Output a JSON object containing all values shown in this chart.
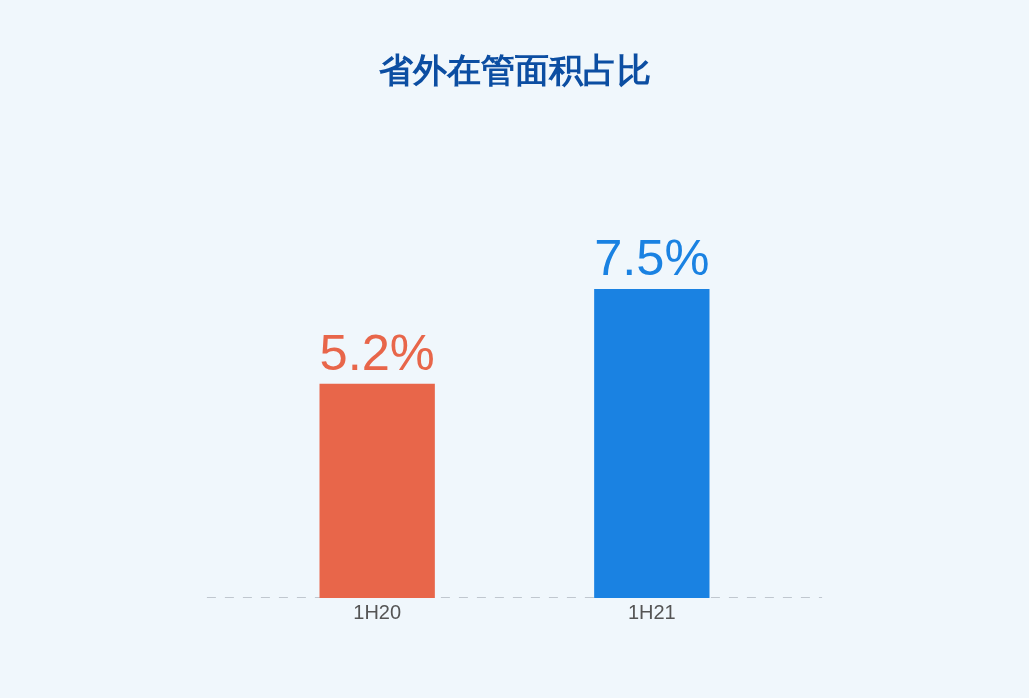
{
  "chart_data": {
    "type": "bar",
    "title": "省外在管面积占比",
    "categories": [
      "1H20",
      "1H21"
    ],
    "values": [
      5.2,
      7.5
    ],
    "colors": [
      "#e8664a",
      "#1a82e2"
    ],
    "value_labels": [
      "5.2%",
      "7.5%"
    ],
    "ref_lines": [
      {
        "axis": "y",
        "value": 0,
        "color": "#b0b8c0",
        "line_style": "dashed"
      }
    ],
    "grid": false
  }
}
